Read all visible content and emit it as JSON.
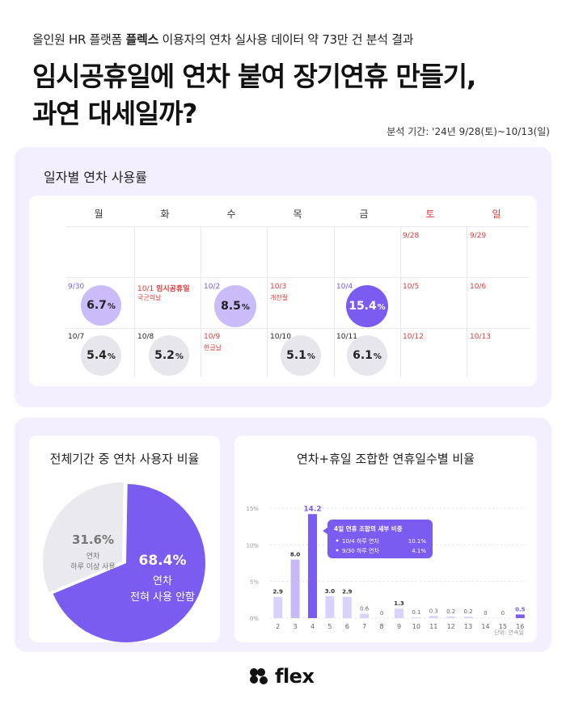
{
  "header": {
    "subtitle_prefix": "올인원 HR 플랫폼 ",
    "subtitle_brand": "플렉스",
    "subtitle_suffix": " 이용자의 연차 실사용 데이터 약 73만 건 분석 결과",
    "title_line1": "임시공휴일에 연차 붙여 장기연휴 만들기,",
    "title_line2": "과연 대세일까?",
    "period": "분석 기간: '24년 9/28(토)~10/13(일)"
  },
  "calendar": {
    "title": "일자별 연차 사용률",
    "days": [
      "월",
      "화",
      "수",
      "목",
      "금",
      "토",
      "일"
    ],
    "unit": "%",
    "week1": {
      "d6": "9/28",
      "d7": "9/29"
    },
    "week2": {
      "d1": "9/30",
      "v1": "6.7",
      "d2": "10/1",
      "d2_holiday": "임시공휴일",
      "d2_note": "국군의날",
      "d3": "10/2",
      "v3": "8.5",
      "d4": "10/3",
      "d4_note": "개천절",
      "d5": "10/4",
      "v5": "15.4",
      "d6": "10/5",
      "d7": "10/6"
    },
    "week3": {
      "d1": "10/7",
      "v1": "5.4",
      "d2": "10/8",
      "v2": "5.2",
      "d3": "10/9",
      "d3_note": "한글날",
      "d4": "10/10",
      "v4": "5.1",
      "d5": "10/11",
      "v5": "6.1",
      "d6": "10/12",
      "d7": "10/13"
    }
  },
  "chart_data": [
    {
      "type": "pie",
      "title": "전체기간 중 연차 사용자 비율",
      "slices": [
        {
          "label": "연차 전혀 사용 안함",
          "value": 68.4,
          "value_label": "68.4%",
          "line1": "연차",
          "line2": "전혀 사용 안함",
          "color": "#7a5cf0"
        },
        {
          "label": "연차 하루 이상 사용",
          "value": 31.6,
          "value_label": "31.6%",
          "line1": "연차",
          "line2": "하루 이상 사용",
          "color": "#e9e9ee"
        }
      ]
    },
    {
      "type": "bar",
      "title": "연차+휴일 조합한 연휴일수별 비율",
      "categories": [
        "2",
        "3",
        "4",
        "5",
        "6",
        "7",
        "8",
        "9",
        "10",
        "11",
        "12",
        "13",
        "14",
        "15",
        "16"
      ],
      "values": [
        2.9,
        8.0,
        14.2,
        3.0,
        2.9,
        0.6,
        0,
        1.3,
        0.1,
        0.3,
        0.2,
        0.2,
        0,
        0,
        0.5
      ],
      "value_labels": [
        "2.9",
        "8.0",
        "14.2",
        "3.0",
        "2.9",
        "0.6",
        "0",
        "1.3",
        "0.1",
        "0.3",
        "0.2",
        "0.2",
        "0",
        "0",
        "0.5"
      ],
      "ylim": [
        0,
        15
      ],
      "yticks": [
        "0%",
        "5%",
        "10%",
        "15%"
      ],
      "unit_note": "단위: 연속일",
      "annotation": {
        "title": "4일 연휴 조합의 세부 비중",
        "row1_date": "10/4 하루 연차",
        "row1_value": "10.1%",
        "row2_date": "9/30 하루 연차",
        "row2_value": "4.1%"
      }
    }
  ],
  "footer": {
    "brand": "flex"
  }
}
